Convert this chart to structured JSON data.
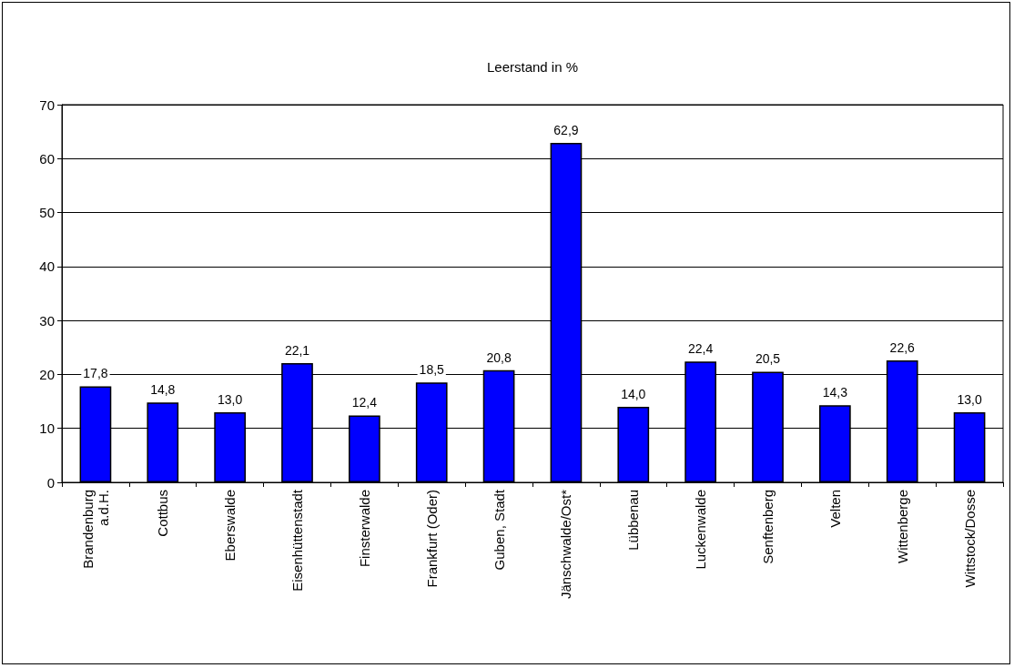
{
  "chart_data": {
    "type": "bar",
    "title": "Leerstand in %",
    "categories": [
      "Brandenburg a.d.H.",
      "Cottbus",
      "Eberswalde",
      "Eisenhüttenstadt",
      "Finsterwalde",
      "Frankfurt (Oder)",
      "Guben, Stadt",
      "Jänschwalde/Ost*",
      "Lübbenau",
      "Luckenwalde",
      "Senftenberg",
      "Velten",
      "Wittenberge",
      "Wittstock/Dosse"
    ],
    "values": [
      17.8,
      14.8,
      13.0,
      22.1,
      12.4,
      18.5,
      20.8,
      62.9,
      14.0,
      22.4,
      20.5,
      14.3,
      22.6,
      13.0
    ],
    "value_labels": [
      "17,8",
      "14,8",
      "13,0",
      "22,1",
      "12,4",
      "18,5",
      "20,8",
      "62,9",
      "14,0",
      "22,4",
      "20,5",
      "14,3",
      "22,6",
      "13,0"
    ],
    "color": "#0000ff",
    "ylim": [
      0,
      70
    ],
    "yticks": [
      0,
      10,
      20,
      30,
      40,
      50,
      60,
      70
    ],
    "grid": "y"
  }
}
